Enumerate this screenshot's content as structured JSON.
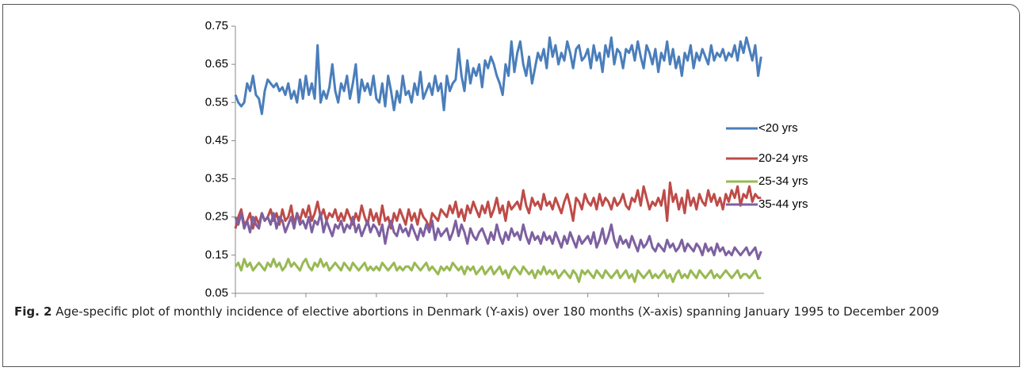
{
  "chart_data": {
    "type": "line",
    "xlim": [
      1995,
      2010
    ],
    "xticks": [
      1995,
      1997,
      1999,
      2001,
      2003,
      2005,
      2007,
      2009
    ],
    "ylim": [
      0.05,
      0.75
    ],
    "yticks": [
      0.05,
      0.15,
      0.25,
      0.35,
      0.45,
      0.55,
      0.65,
      0.75
    ],
    "grid": false,
    "legend": "right",
    "x": [
      1995,
      1995.083,
      1995.167,
      1995.25,
      1995.333,
      1995.417,
      1995.5,
      1995.583,
      1995.667,
      1995.75,
      1995.833,
      1995.917,
      1996,
      1996.083,
      1996.167,
      1996.25,
      1996.333,
      1996.417,
      1996.5,
      1996.583,
      1996.667,
      1996.75,
      1996.833,
      1996.917,
      1997,
      1997.083,
      1997.167,
      1997.25,
      1997.333,
      1997.417,
      1997.5,
      1997.583,
      1997.667,
      1997.75,
      1997.833,
      1997.917,
      1998,
      1998.083,
      1998.167,
      1998.25,
      1998.333,
      1998.417,
      1998.5,
      1998.583,
      1998.667,
      1998.75,
      1998.833,
      1998.917,
      1999,
      1999.083,
      1999.167,
      1999.25,
      1999.333,
      1999.417,
      1999.5,
      1999.583,
      1999.667,
      1999.75,
      1999.833,
      1999.917,
      2000,
      2000.083,
      2000.167,
      2000.25,
      2000.333,
      2000.417,
      2000.5,
      2000.583,
      2000.667,
      2000.75,
      2000.833,
      2000.917,
      2001,
      2001.083,
      2001.167,
      2001.25,
      2001.333,
      2001.417,
      2001.5,
      2001.583,
      2001.667,
      2001.75,
      2001.833,
      2001.917,
      2002,
      2002.083,
      2002.167,
      2002.25,
      2002.333,
      2002.417,
      2002.5,
      2002.583,
      2002.667,
      2002.75,
      2002.833,
      2002.917,
      2003,
      2003.083,
      2003.167,
      2003.25,
      2003.333,
      2003.417,
      2003.5,
      2003.583,
      2003.667,
      2003.75,
      2003.833,
      2003.917,
      2004,
      2004.083,
      2004.167,
      2004.25,
      2004.333,
      2004.417,
      2004.5,
      2004.583,
      2004.667,
      2004.75,
      2004.833,
      2004.917,
      2005,
      2005.083,
      2005.167,
      2005.25,
      2005.333,
      2005.417,
      2005.5,
      2005.583,
      2005.667,
      2005.75,
      2005.833,
      2005.917,
      2006,
      2006.083,
      2006.167,
      2006.25,
      2006.333,
      2006.417,
      2006.5,
      2006.583,
      2006.667,
      2006.75,
      2006.833,
      2006.917,
      2007,
      2007.083,
      2007.167,
      2007.25,
      2007.333,
      2007.417,
      2007.5,
      2007.583,
      2007.667,
      2007.75,
      2007.833,
      2007.917,
      2008,
      2008.083,
      2008.167,
      2008.25,
      2008.333,
      2008.417,
      2008.5,
      2008.583,
      2008.667,
      2008.75,
      2008.833,
      2008.917,
      2009,
      2009.083,
      2009.167,
      2009.25,
      2009.333,
      2009.417,
      2009.5,
      2009.583,
      2009.667,
      2009.75,
      2009.833,
      2009.917
    ],
    "series": [
      {
        "name": "<20 yrs",
        "color": "#4a7ebb",
        "values": [
          0.57,
          0.55,
          0.54,
          0.55,
          0.6,
          0.58,
          0.62,
          0.57,
          0.56,
          0.52,
          0.58,
          0.61,
          0.6,
          0.59,
          0.6,
          0.58,
          0.59,
          0.57,
          0.6,
          0.56,
          0.58,
          0.55,
          0.61,
          0.56,
          0.62,
          0.57,
          0.6,
          0.56,
          0.7,
          0.55,
          0.58,
          0.56,
          0.59,
          0.65,
          0.58,
          0.55,
          0.6,
          0.58,
          0.62,
          0.56,
          0.6,
          0.65,
          0.55,
          0.61,
          0.58,
          0.6,
          0.57,
          0.62,
          0.56,
          0.55,
          0.6,
          0.54,
          0.62,
          0.58,
          0.53,
          0.58,
          0.55,
          0.62,
          0.57,
          0.58,
          0.55,
          0.6,
          0.57,
          0.63,
          0.56,
          0.58,
          0.6,
          0.57,
          0.62,
          0.58,
          0.6,
          0.53,
          0.62,
          0.58,
          0.6,
          0.61,
          0.69,
          0.62,
          0.58,
          0.66,
          0.6,
          0.64,
          0.62,
          0.65,
          0.59,
          0.66,
          0.64,
          0.67,
          0.65,
          0.62,
          0.6,
          0.57,
          0.65,
          0.62,
          0.71,
          0.63,
          0.68,
          0.71,
          0.65,
          0.62,
          0.67,
          0.6,
          0.64,
          0.68,
          0.66,
          0.69,
          0.64,
          0.72,
          0.67,
          0.7,
          0.65,
          0.68,
          0.66,
          0.71,
          0.68,
          0.64,
          0.69,
          0.7,
          0.66,
          0.67,
          0.69,
          0.64,
          0.7,
          0.66,
          0.68,
          0.63,
          0.7,
          0.67,
          0.72,
          0.65,
          0.69,
          0.68,
          0.64,
          0.69,
          0.68,
          0.7,
          0.66,
          0.71,
          0.67,
          0.64,
          0.7,
          0.68,
          0.65,
          0.69,
          0.63,
          0.68,
          0.66,
          0.71,
          0.65,
          0.69,
          0.64,
          0.67,
          0.62,
          0.68,
          0.66,
          0.7,
          0.64,
          0.68,
          0.66,
          0.69,
          0.67,
          0.65,
          0.7,
          0.66,
          0.68,
          0.67,
          0.69,
          0.66,
          0.68,
          0.67,
          0.7,
          0.66,
          0.71,
          0.68,
          0.72,
          0.69,
          0.66,
          0.7,
          0.62,
          0.67
        ]
      },
      {
        "name": "20-24 yrs",
        "color": "#be4b48",
        "values": [
          0.22,
          0.25,
          0.27,
          0.23,
          0.24,
          0.26,
          0.22,
          0.25,
          0.23,
          0.26,
          0.24,
          0.25,
          0.27,
          0.24,
          0.26,
          0.23,
          0.27,
          0.24,
          0.25,
          0.28,
          0.23,
          0.26,
          0.24,
          0.27,
          0.25,
          0.28,
          0.24,
          0.26,
          0.29,
          0.25,
          0.27,
          0.24,
          0.26,
          0.25,
          0.27,
          0.24,
          0.26,
          0.24,
          0.27,
          0.25,
          0.23,
          0.26,
          0.24,
          0.28,
          0.25,
          0.23,
          0.27,
          0.24,
          0.26,
          0.23,
          0.28,
          0.24,
          0.25,
          0.22,
          0.26,
          0.24,
          0.27,
          0.25,
          0.23,
          0.27,
          0.24,
          0.26,
          0.23,
          0.27,
          0.25,
          0.24,
          0.22,
          0.26,
          0.25,
          0.24,
          0.27,
          0.26,
          0.25,
          0.28,
          0.26,
          0.29,
          0.25,
          0.27,
          0.24,
          0.28,
          0.26,
          0.29,
          0.27,
          0.25,
          0.28,
          0.26,
          0.29,
          0.25,
          0.27,
          0.3,
          0.26,
          0.28,
          0.24,
          0.29,
          0.27,
          0.28,
          0.29,
          0.27,
          0.32,
          0.28,
          0.26,
          0.3,
          0.28,
          0.29,
          0.27,
          0.31,
          0.28,
          0.29,
          0.27,
          0.3,
          0.28,
          0.26,
          0.29,
          0.31,
          0.28,
          0.24,
          0.3,
          0.29,
          0.27,
          0.31,
          0.29,
          0.28,
          0.3,
          0.27,
          0.31,
          0.28,
          0.3,
          0.29,
          0.27,
          0.3,
          0.28,
          0.29,
          0.31,
          0.28,
          0.27,
          0.3,
          0.29,
          0.32,
          0.28,
          0.33,
          0.3,
          0.27,
          0.29,
          0.28,
          0.3,
          0.28,
          0.32,
          0.24,
          0.34,
          0.29,
          0.31,
          0.27,
          0.3,
          0.26,
          0.32,
          0.28,
          0.3,
          0.27,
          0.31,
          0.29,
          0.28,
          0.32,
          0.29,
          0.31,
          0.28,
          0.3,
          0.27,
          0.31,
          0.29,
          0.32,
          0.3,
          0.33,
          0.28,
          0.31,
          0.3,
          0.33,
          0.29,
          0.31,
          0.3,
          0.3
        ]
      },
      {
        "name": "25-34 yrs",
        "color": "#98b954",
        "values": [
          0.12,
          0.13,
          0.11,
          0.14,
          0.12,
          0.13,
          0.11,
          0.12,
          0.13,
          0.12,
          0.11,
          0.13,
          0.12,
          0.14,
          0.12,
          0.13,
          0.11,
          0.12,
          0.14,
          0.12,
          0.13,
          0.12,
          0.11,
          0.13,
          0.14,
          0.12,
          0.11,
          0.13,
          0.12,
          0.14,
          0.12,
          0.13,
          0.11,
          0.12,
          0.13,
          0.12,
          0.11,
          0.13,
          0.12,
          0.11,
          0.13,
          0.12,
          0.11,
          0.12,
          0.13,
          0.11,
          0.12,
          0.11,
          0.12,
          0.11,
          0.13,
          0.12,
          0.11,
          0.12,
          0.13,
          0.11,
          0.12,
          0.11,
          0.12,
          0.12,
          0.11,
          0.13,
          0.12,
          0.11,
          0.12,
          0.13,
          0.11,
          0.12,
          0.11,
          0.1,
          0.12,
          0.11,
          0.12,
          0.11,
          0.13,
          0.12,
          0.11,
          0.12,
          0.1,
          0.12,
          0.11,
          0.12,
          0.1,
          0.11,
          0.12,
          0.1,
          0.11,
          0.12,
          0.1,
          0.11,
          0.12,
          0.1,
          0.11,
          0.09,
          0.11,
          0.12,
          0.11,
          0.1,
          0.12,
          0.11,
          0.1,
          0.11,
          0.09,
          0.11,
          0.1,
          0.12,
          0.1,
          0.11,
          0.1,
          0.11,
          0.09,
          0.1,
          0.11,
          0.1,
          0.09,
          0.11,
          0.1,
          0.08,
          0.11,
          0.1,
          0.11,
          0.1,
          0.09,
          0.11,
          0.1,
          0.09,
          0.11,
          0.1,
          0.09,
          0.1,
          0.11,
          0.09,
          0.1,
          0.11,
          0.09,
          0.1,
          0.08,
          0.11,
          0.1,
          0.09,
          0.1,
          0.11,
          0.09,
          0.1,
          0.09,
          0.1,
          0.11,
          0.09,
          0.1,
          0.08,
          0.1,
          0.11,
          0.09,
          0.1,
          0.09,
          0.11,
          0.1,
          0.09,
          0.11,
          0.1,
          0.09,
          0.1,
          0.11,
          0.09,
          0.1,
          0.09,
          0.1,
          0.11,
          0.1,
          0.09,
          0.1,
          0.11,
          0.09,
          0.1,
          0.1,
          0.09,
          0.1,
          0.11,
          0.09,
          0.09
        ]
      },
      {
        "name": "35-44 yrs",
        "color": "#7d60a0",
        "values": [
          0.25,
          0.23,
          0.26,
          0.22,
          0.24,
          0.21,
          0.25,
          0.23,
          0.22,
          0.26,
          0.24,
          0.25,
          0.23,
          0.26,
          0.22,
          0.25,
          0.24,
          0.21,
          0.23,
          0.25,
          0.22,
          0.26,
          0.23,
          0.24,
          0.22,
          0.25,
          0.21,
          0.24,
          0.23,
          0.26,
          0.21,
          0.24,
          0.22,
          0.2,
          0.23,
          0.22,
          0.24,
          0.21,
          0.23,
          0.22,
          0.25,
          0.21,
          0.23,
          0.2,
          0.22,
          0.24,
          0.21,
          0.23,
          0.22,
          0.2,
          0.23,
          0.18,
          0.22,
          0.24,
          0.21,
          0.2,
          0.23,
          0.21,
          0.22,
          0.2,
          0.23,
          0.21,
          0.19,
          0.22,
          0.2,
          0.23,
          0.21,
          0.24,
          0.19,
          0.22,
          0.2,
          0.21,
          0.22,
          0.19,
          0.21,
          0.24,
          0.2,
          0.23,
          0.21,
          0.18,
          0.22,
          0.2,
          0.19,
          0.21,
          0.22,
          0.2,
          0.18,
          0.21,
          0.19,
          0.23,
          0.2,
          0.18,
          0.21,
          0.19,
          0.22,
          0.2,
          0.21,
          0.19,
          0.23,
          0.2,
          0.18,
          0.21,
          0.19,
          0.2,
          0.18,
          0.21,
          0.19,
          0.2,
          0.18,
          0.21,
          0.19,
          0.17,
          0.2,
          0.18,
          0.21,
          0.19,
          0.17,
          0.2,
          0.18,
          0.19,
          0.2,
          0.18,
          0.21,
          0.17,
          0.19,
          0.22,
          0.18,
          0.2,
          0.23,
          0.19,
          0.17,
          0.2,
          0.18,
          0.19,
          0.17,
          0.2,
          0.18,
          0.16,
          0.19,
          0.17,
          0.18,
          0.2,
          0.17,
          0.16,
          0.18,
          0.17,
          0.16,
          0.19,
          0.17,
          0.18,
          0.16,
          0.17,
          0.19,
          0.16,
          0.18,
          0.17,
          0.16,
          0.18,
          0.17,
          0.15,
          0.18,
          0.16,
          0.17,
          0.15,
          0.18,
          0.16,
          0.17,
          0.15,
          0.16,
          0.15,
          0.17,
          0.16,
          0.15,
          0.16,
          0.17,
          0.15,
          0.16,
          0.17,
          0.14,
          0.16
        ]
      }
    ]
  },
  "caption": {
    "label": "Fig. 2",
    "text": "Age-specific plot of monthly incidence of elective abortions in Denmark (Y-axis) over 180 months (X-axis) spanning January 1995 to December 2009"
  }
}
